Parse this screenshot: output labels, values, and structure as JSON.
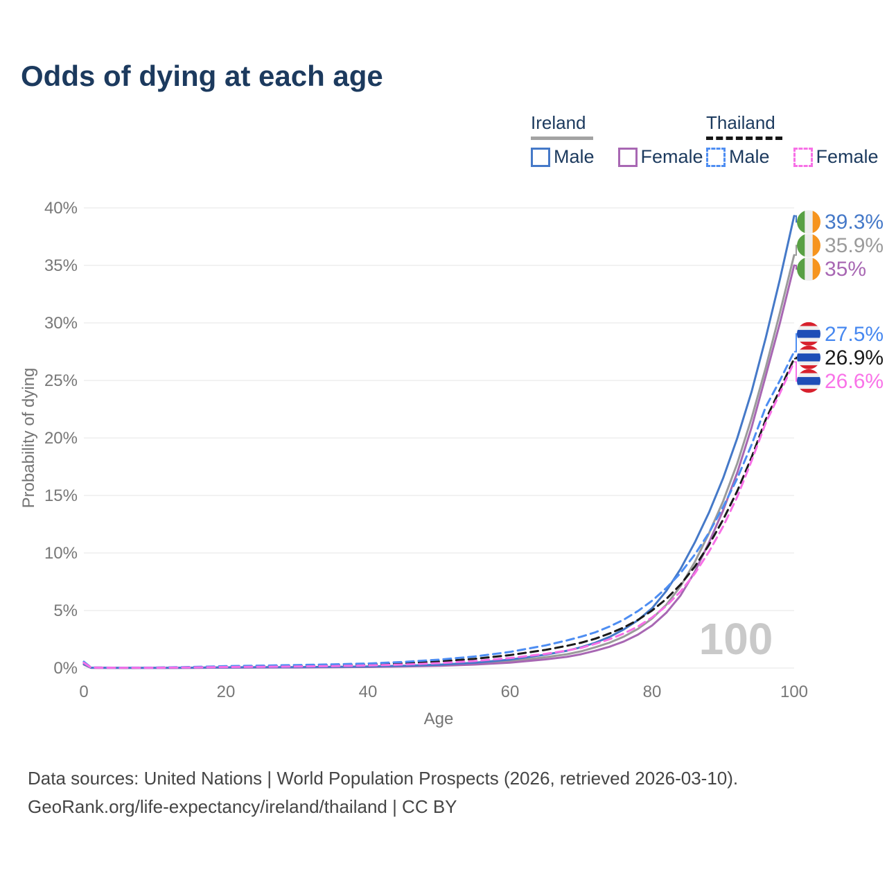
{
  "title": "Odds of dying at each age",
  "legend": {
    "groups": [
      {
        "name": "Ireland",
        "line_style": "solid",
        "underline_color": "#a3a3a3",
        "items": [
          {
            "label": "Male",
            "color": "#4579c8"
          },
          {
            "label": "Female",
            "color": "#a867b3"
          }
        ]
      },
      {
        "name": "Thailand",
        "line_style": "dashed",
        "underline_color": "#161616",
        "items": [
          {
            "label": "Male",
            "color": "#4d8df2"
          },
          {
            "label": "Female",
            "color": "#f770e6"
          }
        ]
      }
    ]
  },
  "flags": {
    "ireland": {
      "type": "vertical-tricolor",
      "colors": [
        "#58a044",
        "#ededed",
        "#f6941e"
      ]
    },
    "thailand": {
      "type": "horizontal-stripes",
      "colors": [
        "#d7202c",
        "#efefef",
        "#1e4db7",
        "#efefef",
        "#d7202c"
      ],
      "heights": [
        1,
        1,
        2,
        1,
        1
      ]
    }
  },
  "chart_data": {
    "type": "line",
    "title": "Odds of dying at each age",
    "xlabel": "Age",
    "ylabel": "Probability of dying",
    "xlim": [
      0,
      100
    ],
    "ylim": [
      0,
      40
    ],
    "x_ticks": [
      0,
      20,
      40,
      60,
      80,
      100
    ],
    "y_ticks": [
      0,
      5,
      10,
      15,
      20,
      25,
      30,
      35,
      40
    ],
    "y_tick_suffix": "%",
    "grid": "horizontal-only",
    "legend_position": "top-right",
    "age_counter_watermark": "100",
    "x": [
      0,
      1,
      5,
      10,
      15,
      20,
      25,
      30,
      35,
      40,
      45,
      50,
      55,
      60,
      65,
      68,
      70,
      72,
      74,
      76,
      78,
      80,
      82,
      84,
      86,
      88,
      90,
      92,
      94,
      96,
      98,
      100
    ],
    "series": [
      {
        "name": "Ireland",
        "flag": "ireland",
        "color": "#9b9b9b",
        "dashed": false,
        "end_label": "35.9%",
        "end_value": 35.9,
        "label_color": "#9b9b9b",
        "values": [
          0.32,
          0.025,
          0.008,
          0.009,
          0.02,
          0.045,
          0.055,
          0.065,
          0.08,
          0.11,
          0.16,
          0.24,
          0.38,
          0.59,
          0.94,
          1.2,
          1.45,
          1.8,
          2.2,
          2.72,
          3.4,
          4.3,
          5.5,
          7.1,
          9.2,
          11.7,
          14.5,
          17.8,
          21.7,
          26.1,
          30.9,
          35.9
        ]
      },
      {
        "name": "Ireland Female",
        "flag": "ireland",
        "color": "#a867b3",
        "dashed": false,
        "end_label": "35%",
        "end_value": 35.0,
        "label_color": "#a867b3",
        "values": [
          0.3,
          0.02,
          0.007,
          0.008,
          0.015,
          0.03,
          0.04,
          0.05,
          0.065,
          0.09,
          0.13,
          0.19,
          0.3,
          0.47,
          0.75,
          0.97,
          1.2,
          1.5,
          1.85,
          2.3,
          2.9,
          3.7,
          4.8,
          6.3,
          8.35,
          10.9,
          13.7,
          17.0,
          20.9,
          25.4,
          30.0,
          35.0
        ]
      },
      {
        "name": "Ireland Male",
        "flag": "ireland",
        "color": "#4579c8",
        "dashed": false,
        "end_label": "39.3%",
        "end_value": 39.3,
        "label_color": "#4579c8",
        "values": [
          0.35,
          0.03,
          0.01,
          0.01,
          0.03,
          0.06,
          0.07,
          0.08,
          0.1,
          0.13,
          0.19,
          0.29,
          0.46,
          0.73,
          1.16,
          1.5,
          1.8,
          2.2,
          2.7,
          3.35,
          4.15,
          5.2,
          6.7,
          8.6,
          10.9,
          13.5,
          16.5,
          20.0,
          24.0,
          28.7,
          33.8,
          39.3
        ]
      },
      {
        "name": "Thailand",
        "flag": "thailand",
        "color": "#1a1a1a",
        "dashed": true,
        "end_label": "26.9%",
        "end_value": 26.9,
        "label_color": "#1a1a1a",
        "values": [
          0.5,
          0.045,
          0.025,
          0.03,
          0.07,
          0.12,
          0.16,
          0.19,
          0.24,
          0.3,
          0.41,
          0.57,
          0.8,
          1.12,
          1.58,
          1.93,
          2.2,
          2.55,
          3.0,
          3.52,
          4.18,
          5.0,
          6.0,
          7.25,
          8.8,
          10.7,
          12.9,
          15.4,
          18.3,
          21.6,
          24.2,
          26.9
        ]
      },
      {
        "name": "Thailand Male",
        "flag": "thailand",
        "color": "#4d8df2",
        "dashed": true,
        "end_label": "27.5%",
        "end_value": 27.5,
        "label_color": "#4788f0",
        "values": [
          0.55,
          0.05,
          0.03,
          0.04,
          0.09,
          0.16,
          0.21,
          0.26,
          0.32,
          0.39,
          0.53,
          0.73,
          1.0,
          1.4,
          1.97,
          2.4,
          2.72,
          3.1,
          3.6,
          4.2,
          4.95,
          5.85,
          6.95,
          8.25,
          9.85,
          11.75,
          14.0,
          16.5,
          19.4,
          22.7,
          25.0,
          27.5
        ]
      },
      {
        "name": "Thailand Female",
        "flag": "thailand",
        "color": "#f770e6",
        "dashed": true,
        "end_label": "26.6%",
        "end_value": 26.6,
        "label_color": "#f973e8",
        "values": [
          0.45,
          0.04,
          0.02,
          0.025,
          0.05,
          0.09,
          0.11,
          0.13,
          0.17,
          0.22,
          0.3,
          0.43,
          0.61,
          0.87,
          1.23,
          1.52,
          1.75,
          2.1,
          2.5,
          3.0,
          3.6,
          4.4,
          5.4,
          6.65,
          8.2,
          10.1,
          12.3,
          14.9,
          18.0,
          21.3,
          23.9,
          26.6
        ]
      }
    ]
  },
  "footer": {
    "line1": "Data sources: United Nations | World Population Prospects (2026, retrieved 2026-03-10).",
    "line2": "GeoRank.org/life-expectancy/ireland/thailand | CC BY"
  }
}
